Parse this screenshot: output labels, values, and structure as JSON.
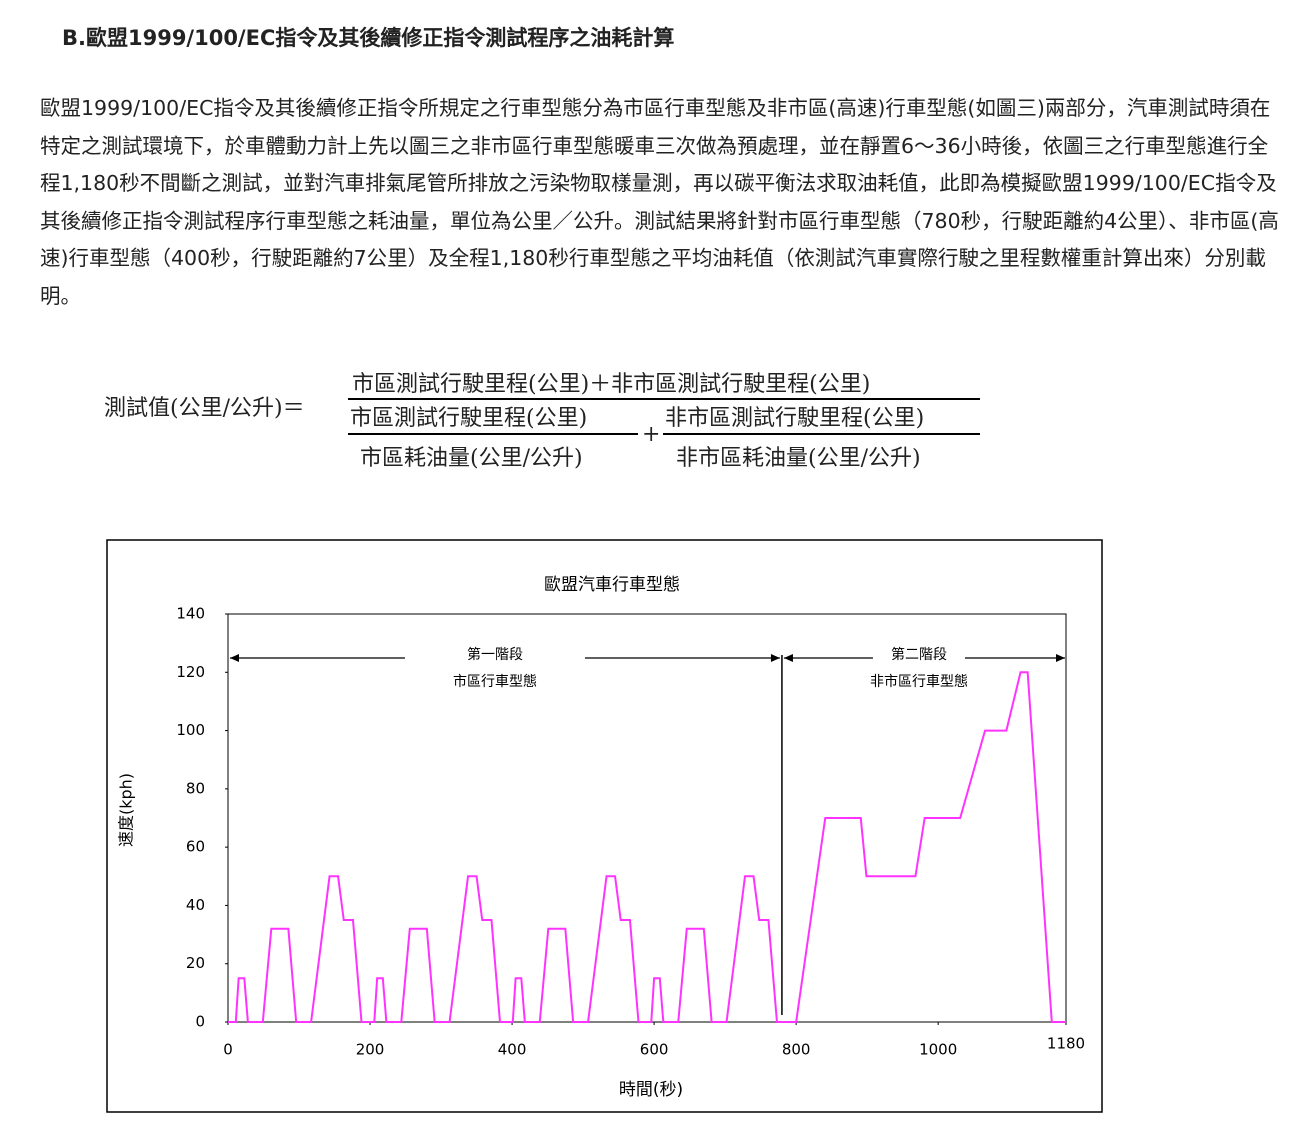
{
  "heading": "B.歐盟1999/100/EC指令及其後續修正指令測試程序之油耗計算",
  "paragraph": "歐盟1999/100/EC指令及其後續修正指令所規定之行車型態分為市區行車型態及非市區(高速)行車型態(如圖三)兩部分，汽車測試時須在特定之測試環境下，於車體動力計上先以圖三之非市區行車型態暖車三次做為預處理，並在靜置6～36小時後，依圖三之行車型態進行全程1,180秒不間斷之測試，並對汽車排氣尾管所排放之污染物取樣量測，再以碳平衡法求取油耗值，此即為模擬歐盟1999/100/EC指令及其後續修正指令測試程序行車型態之耗油量，單位為公里／公升。測試結果將針對市區行車型態（780秒，行駛距離約4公里）、非市區(高速)行車型態（400秒，行駛距離約7公里）及全程1,180秒行車型態之平均油耗值（依測試汽車實際行駛之里程數權重計算出來）分別載明。",
  "formula": {
    "lhs": "測試值(公里/公升)＝",
    "numerator": "市區測試行駛里程(公里)＋非市區測試行駛里程(公里)",
    "plus": "+",
    "terms": [
      {
        "numerator": "市區測試行駛里程(公里)",
        "denominator": "市區耗油量(公里/公升)"
      },
      {
        "numerator": "非市區測試行駛里程(公里)",
        "denominator": "非市區耗油量(公里/公升)"
      }
    ]
  },
  "chart_data": {
    "type": "line",
    "title": "歐盟汽車行車型態",
    "xlabel": "時間(秒)",
    "ylabel": "速度(kph)",
    "color": "#ff33ff",
    "x": [
      0,
      11,
      15,
      23,
      28,
      49,
      61,
      85,
      96,
      117,
      143,
      155,
      163,
      176,
      188,
      195,
      206,
      210,
      218,
      223,
      244,
      256,
      280,
      291,
      312,
      338,
      350,
      358,
      371,
      383,
      390,
      401,
      405,
      413,
      418,
      439,
      451,
      475,
      486,
      507,
      533,
      545,
      553,
      566,
      578,
      585,
      596,
      600,
      608,
      613,
      634,
      646,
      670,
      681,
      702,
      728,
      740,
      748,
      761,
      773,
      780,
      800,
      841,
      891,
      899,
      968,
      981,
      1031,
      1066,
      1096,
      1116,
      1126,
      1160,
      1180
    ],
    "values": [
      0,
      0,
      15,
      15,
      0,
      0,
      32,
      32,
      0,
      0,
      50,
      50,
      35,
      35,
      0,
      0,
      0,
      15,
      15,
      0,
      0,
      32,
      32,
      0,
      0,
      50,
      50,
      35,
      35,
      0,
      0,
      0,
      15,
      15,
      0,
      0,
      32,
      32,
      0,
      0,
      50,
      50,
      35,
      35,
      0,
      0,
      0,
      15,
      15,
      0,
      0,
      32,
      32,
      0,
      0,
      50,
      50,
      35,
      35,
      0,
      0,
      0,
      70,
      70,
      50,
      50,
      70,
      70,
      100,
      100,
      120,
      120,
      0,
      0
    ],
    "phase_boundary": 780,
    "annotations": [
      {
        "phase": "第一階段",
        "label": "市區行車型態"
      },
      {
        "phase": "第二階段",
        "label": "非市區行車型態"
      }
    ],
    "xlim": [
      0,
      1180
    ],
    "xticks": [
      0,
      200,
      400,
      600,
      800,
      1000,
      1180
    ],
    "ylim": [
      0,
      140
    ],
    "yticks": [
      0,
      20,
      40,
      60,
      80,
      100,
      120,
      140
    ],
    "grid": false
  }
}
